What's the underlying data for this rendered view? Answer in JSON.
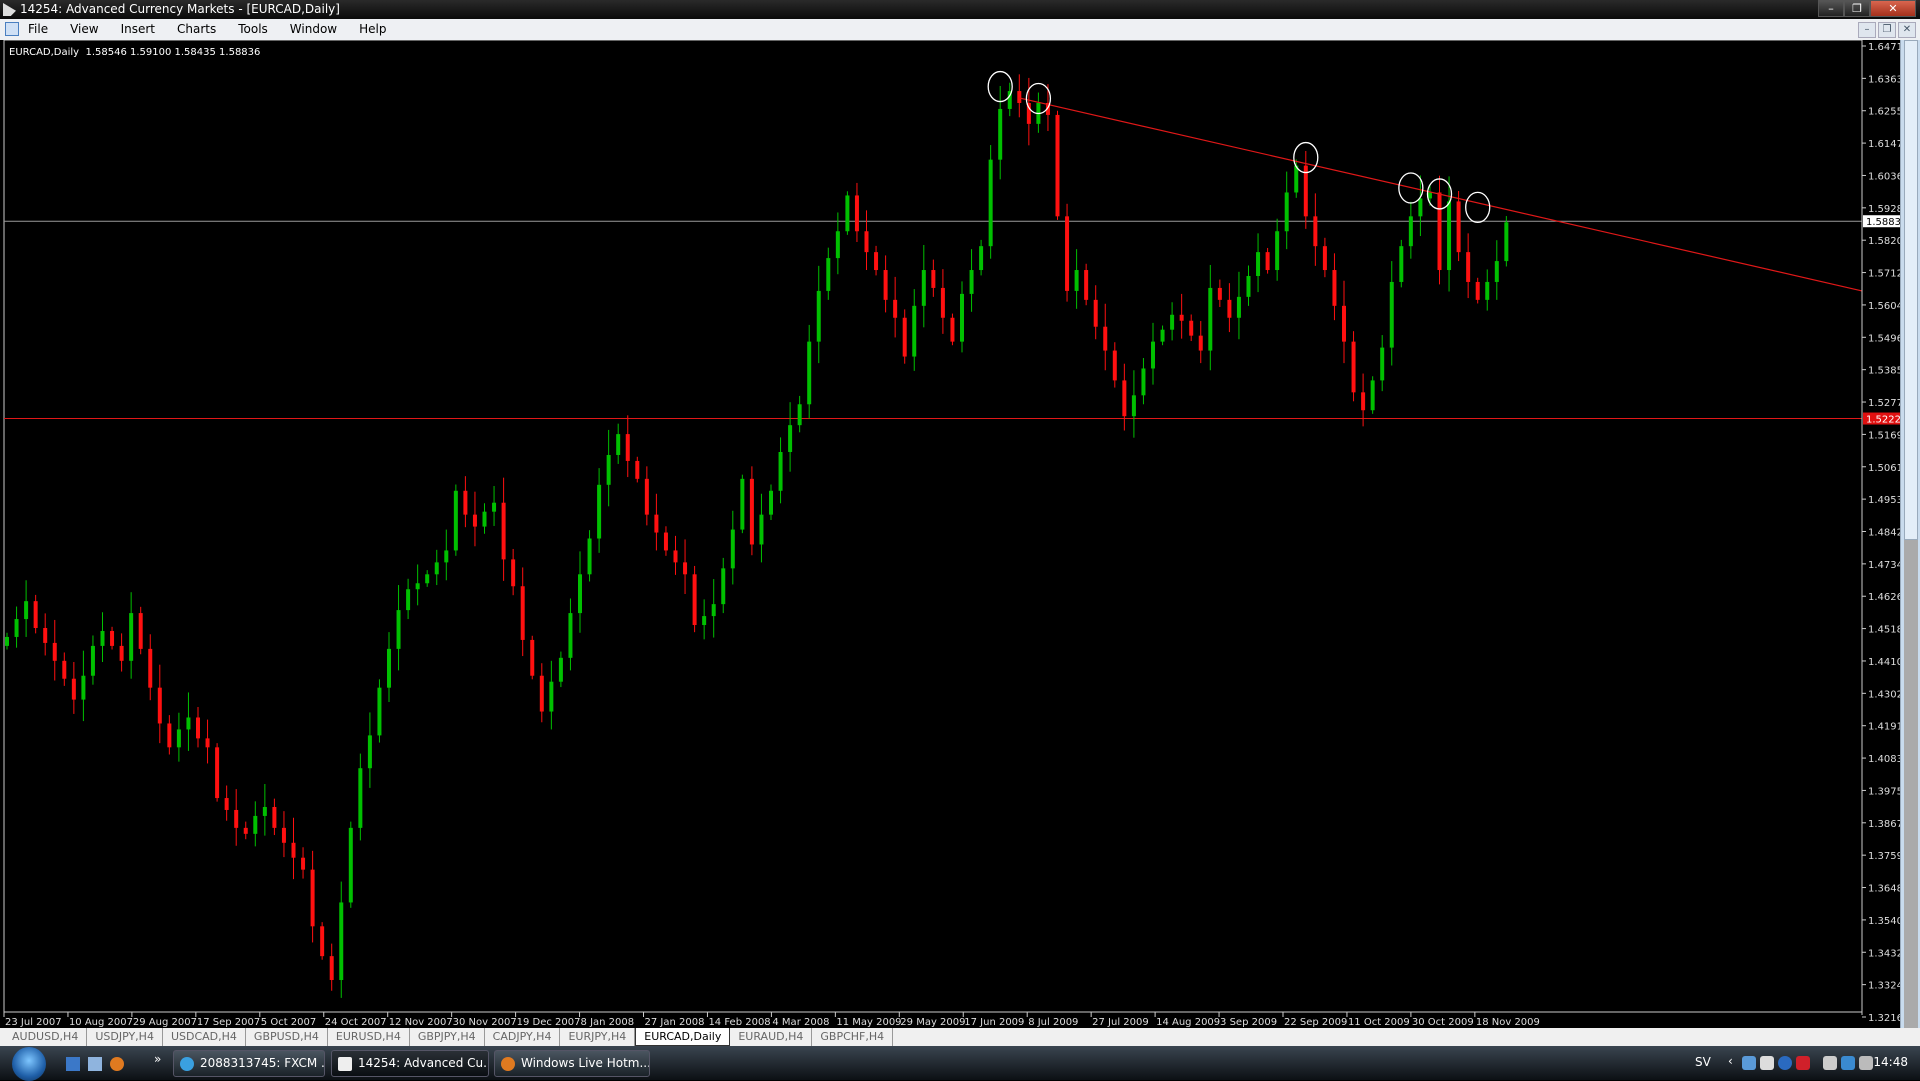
{
  "window": {
    "title": "14254: Advanced Currency Markets - [EURCAD,Daily]"
  },
  "menu": [
    "File",
    "View",
    "Insert",
    "Charts",
    "Tools",
    "Window",
    "Help"
  ],
  "chart": {
    "symbol_info": "EURCAD,Daily  1.58546 1.59100 1.58435 1.58836",
    "colors": {
      "bull": "#00c000",
      "bear": "#ff1010",
      "background": "#000000",
      "trendline": "#e01818",
      "hline": "#e01818",
      "bid_line": "#9a9a9a"
    },
    "price_ticks": [
      "1.64710",
      "1.63630",
      "1.62550",
      "1.61470",
      "1.60360",
      "1.59280",
      "1.58200",
      "1.57120",
      "1.56040",
      "1.54960",
      "1.53850",
      "1.52770",
      "1.51690",
      "1.50610",
      "1.49530",
      "1.48420",
      "1.47340",
      "1.46260",
      "1.45180",
      "1.44100",
      "1.43020",
      "1.41910",
      "1.40830",
      "1.39750",
      "1.38670",
      "1.37590",
      "1.36480",
      "1.35400",
      "1.34320",
      "1.33240",
      "1.32160"
    ],
    "price_range": [
      1.3216,
      1.6471
    ],
    "bid_label": "1.58836",
    "bid_price": 1.58836,
    "hline_label": "1.52222",
    "hline_price": 1.52222,
    "date_ticks": [
      "23 Jul 2007",
      "10 Aug 2007",
      "29 Aug 2007",
      "17 Sep 2007",
      "5 Oct 2007",
      "24 Oct 2007",
      "12 Nov 2007",
      "30 Nov 2007",
      "19 Dec 2007",
      "8 Jan 2008",
      "27 Jan 2008",
      "14 Feb 2008",
      "4 Mar 2008",
      "11 May 2009",
      "29 May 2009",
      "17 Jun 2009",
      "8 Jul 2009",
      "27 Jul 2009",
      "14 Aug 2009",
      "3 Sep 2009",
      "22 Sep 2009",
      "11 Oct 2009",
      "30 Oct 2009",
      "18 Nov 2009"
    ],
    "closes": [
      1.449,
      1.455,
      1.461,
      1.452,
      1.447,
      1.441,
      1.435,
      1.428,
      1.436,
      1.446,
      1.451,
      1.446,
      1.441,
      1.457,
      1.445,
      1.432,
      1.42,
      1.412,
      1.418,
      1.422,
      1.415,
      1.412,
      1.395,
      1.391,
      1.385,
      1.383,
      1.389,
      1.392,
      1.385,
      1.38,
      1.375,
      1.371,
      1.352,
      1.342,
      1.334,
      1.36,
      1.385,
      1.405,
      1.416,
      1.432,
      1.445,
      1.458,
      1.465,
      1.467,
      1.47,
      1.474,
      1.478,
      1.498,
      1.49,
      1.486,
      1.491,
      1.494,
      1.475,
      1.466,
      1.448,
      1.436,
      1.424,
      1.434,
      1.442,
      1.457,
      1.47,
      1.482,
      1.5,
      1.51,
      1.517,
      1.508,
      1.502,
      1.49,
      1.484,
      1.478,
      1.474,
      1.47,
      1.453,
      1.456,
      1.46,
      1.472,
      1.485,
      1.502,
      1.48,
      1.49,
      1.498,
      1.511,
      1.52,
      1.527,
      1.548,
      1.565,
      1.576,
      1.585,
      1.597,
      1.585,
      1.578,
      1.572,
      1.562,
      1.556,
      1.543,
      1.56,
      1.572,
      1.566,
      1.556,
      1.548,
      1.564,
      1.572,
      1.58,
      1.609,
      1.626,
      1.632,
      1.628,
      1.621,
      1.628,
      1.624,
      1.59,
      1.565,
      1.572,
      1.562,
      1.553,
      1.545,
      1.535,
      1.523,
      1.53,
      1.539,
      1.548,
      1.552,
      1.557,
      1.555,
      1.55,
      1.545,
      1.566,
      1.562,
      1.556,
      1.563,
      1.57,
      1.578,
      1.572,
      1.585,
      1.598,
      1.607,
      1.59,
      1.58,
      1.572,
      1.56,
      1.548,
      1.531,
      1.525,
      1.535,
      1.546,
      1.568,
      1.58,
      1.59,
      1.596,
      1.598,
      1.572,
      1.595,
      1.578,
      1.568,
      1.562,
      1.568,
      1.575,
      1.588
    ],
    "trendline": {
      "from_index": 106,
      "from_price": 1.6297,
      "to_price": 1.565
    },
    "circled_highs": [
      {
        "index": 104,
        "price": 1.6335
      },
      {
        "index": 108,
        "price": 1.6295
      },
      {
        "index": 136,
        "price": 1.6097
      },
      {
        "index": 147,
        "price": 1.5995
      },
      {
        "index": 150,
        "price": 1.5975
      },
      {
        "index": 154,
        "price": 1.593
      }
    ]
  },
  "tabs": [
    {
      "label": "AUDUSD,H4"
    },
    {
      "label": "USDJPY,H4"
    },
    {
      "label": "USDCAD,H4"
    },
    {
      "label": "GBPUSD,H4"
    },
    {
      "label": "EURUSD,H4"
    },
    {
      "label": "GBPJPY,H4"
    },
    {
      "label": "CADJPY,H4"
    },
    {
      "label": "EURJPY,H4"
    },
    {
      "label": "EURCAD,Daily",
      "active": true
    },
    {
      "label": "EURAUD,H4"
    },
    {
      "label": "GBPCHF,H4"
    }
  ],
  "taskbar": {
    "more": "»",
    "buttons": [
      "2088313745: FXCM ...",
      "14254: Advanced Cu...",
      "Windows Live Hotm..."
    ],
    "lang": "SV",
    "clock": "14:48"
  }
}
